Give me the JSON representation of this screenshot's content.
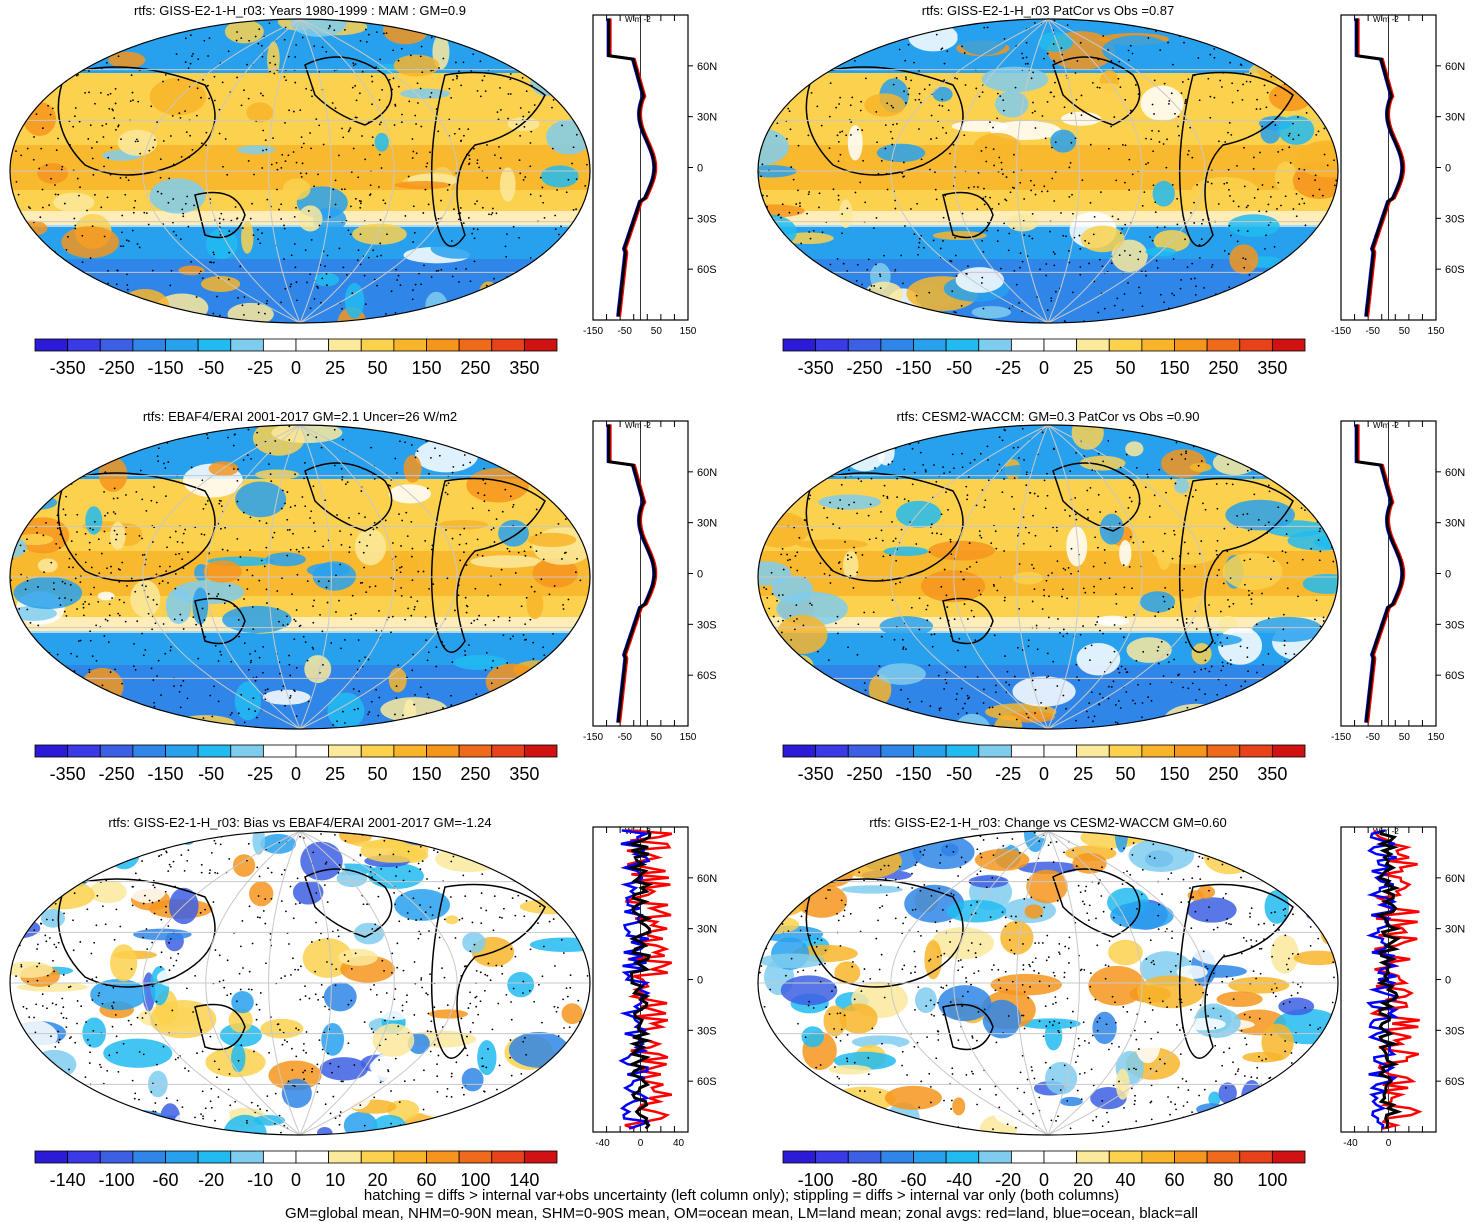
{
  "panels": [
    {
      "title": "rtfs: GISS-E2-1-H_r03: Years 1980-1999 : MAM : GM=0.9",
      "cbar_labels": [
        "-350",
        "-250",
        "-150",
        "-50",
        "-25",
        "0",
        "25",
        "50",
        "150",
        "250",
        "350"
      ],
      "zonal_ticks": [
        "-150",
        "-50",
        "50",
        "150"
      ],
      "zonal_range": [
        -150,
        150
      ]
    },
    {
      "title": "rtfs: GISS-E2-1-H_r03 PatCor vs Obs =0.87",
      "cbar_labels": [
        "-350",
        "-250",
        "-150",
        "-50",
        "-25",
        "0",
        "25",
        "50",
        "150",
        "250",
        "350"
      ],
      "zonal_ticks": [
        "-150",
        "-50",
        "50",
        "150"
      ],
      "zonal_range": [
        -150,
        150
      ]
    },
    {
      "title": "rtfs: EBAF4/ERAI 2001-2017 GM=2.1 Uncer=26 W/m2",
      "cbar_labels": [
        "-350",
        "-250",
        "-150",
        "-50",
        "-25",
        "0",
        "25",
        "50",
        "150",
        "250",
        "350"
      ],
      "zonal_ticks": [
        "-150",
        "-50",
        "50",
        "150"
      ],
      "zonal_range": [
        -150,
        150
      ]
    },
    {
      "title": "rtfs: CESM2-WACCM: GM=0.3 PatCor vs Obs =0.90",
      "cbar_labels": [
        "-350",
        "-250",
        "-150",
        "-50",
        "-25",
        "0",
        "25",
        "50",
        "150",
        "250",
        "350"
      ],
      "zonal_ticks": [
        "-150",
        "-50",
        "50",
        "150"
      ],
      "zonal_range": [
        -150,
        150
      ]
    },
    {
      "title": "rtfs: GISS-E2-1-H_r03: Bias vs EBAF4/ERAI 2001-2017 GM=-1.24",
      "cbar_labels": [
        "-140",
        "-100",
        "-60",
        "-20",
        "-10",
        "0",
        "10",
        "20",
        "60",
        "100",
        "140"
      ],
      "zonal_ticks": [
        "-40",
        "0",
        "40"
      ],
      "zonal_range": [
        -50,
        50
      ]
    },
    {
      "title": "rtfs: GISS-E2-1-H_r03: Change vs CESM2-WACCM GM=0.60",
      "cbar_labels": [
        "-100",
        "-80",
        "-60",
        "-40",
        "-20",
        "0",
        "20",
        "40",
        "60",
        "80",
        "100"
      ],
      "zonal_ticks": [
        "-40",
        "0"
      ],
      "zonal_range": [
        -50,
        50
      ]
    }
  ],
  "lat_labels": [
    "60N",
    "30N",
    "0",
    "30S",
    "60S"
  ],
  "units": "W m",
  "units_sup": "-2",
  "palette": [
    "#2b1bd6",
    "#3a3ae6",
    "#3d5fe3",
    "#2f86e8",
    "#27a1ee",
    "#21bbf1",
    "#7fcdee",
    "#ffffff",
    "#ffffff",
    "#fbe99c",
    "#fcd14e",
    "#f8b52a",
    "#f6951c",
    "#ef6b1b",
    "#e8421a",
    "#d11212"
  ],
  "line_colors": {
    "land": "#ff0000",
    "ocean": "#0000ff",
    "all": "#000000"
  },
  "footer": [
    "hatching = diffs > internal var+obs uncertainty (left column only); stippling = diffs > internal var only (both columns)",
    "GM=global mean, NHM=0-90N mean, SHM=0-90S mean, OM=ocean mean, LM=land mean; zonal avgs: red=land, blue=ocean, black=all"
  ]
}
